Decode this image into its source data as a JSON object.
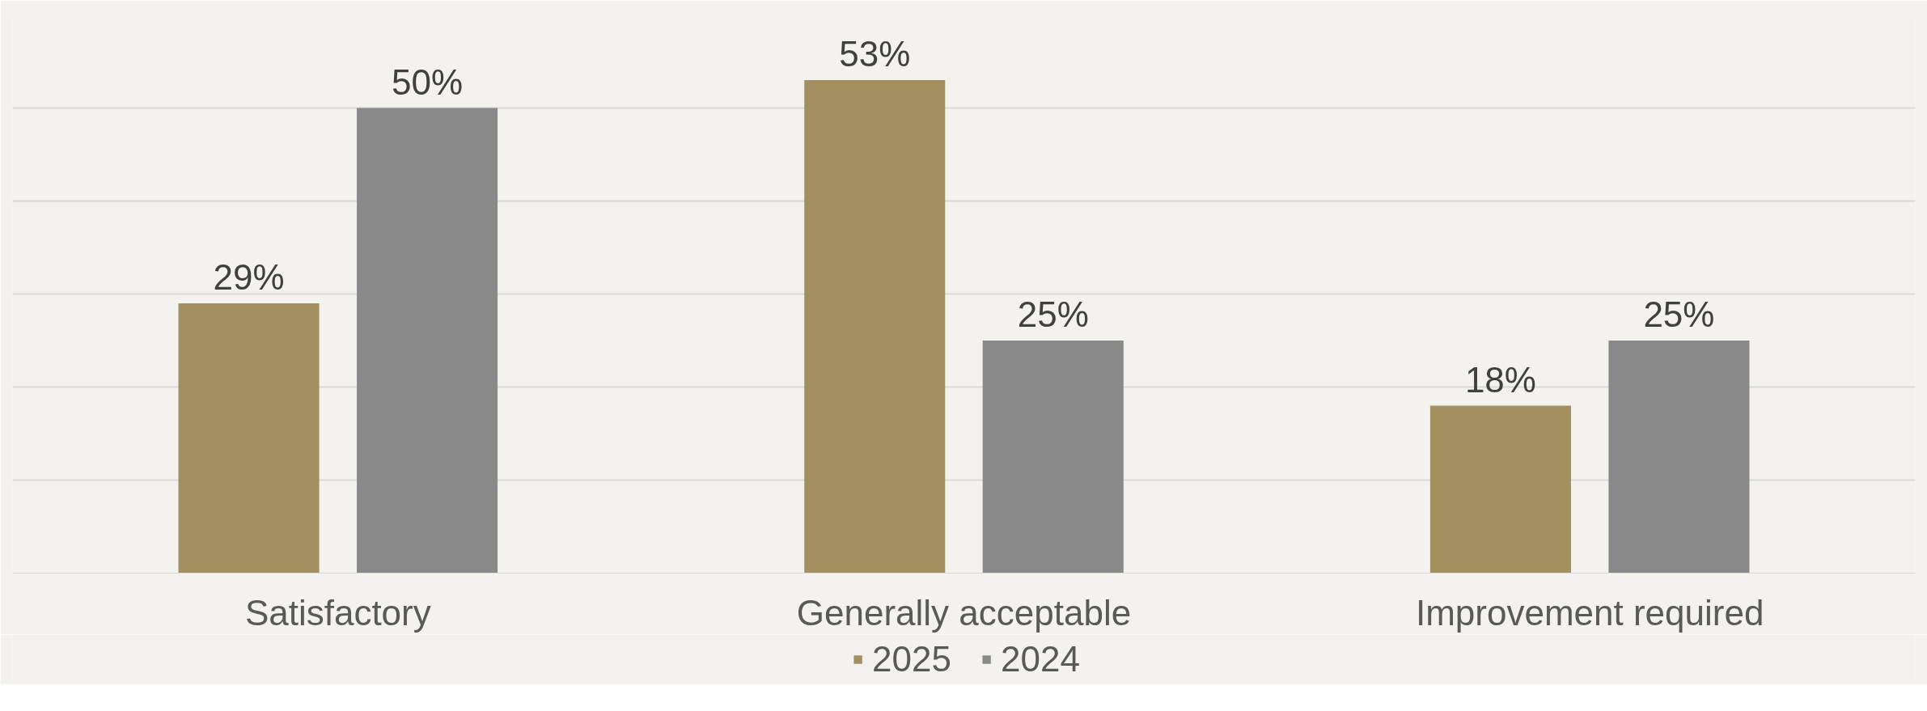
{
  "chart_data": {
    "type": "bar",
    "categories": [
      "Satisfactory",
      "Generally acceptable",
      "Improvement required"
    ],
    "series": [
      {
        "name": "2025",
        "color": "#a39060",
        "values": [
          29,
          53,
          18
        ],
        "value_labels": [
          "29%",
          "53%",
          "18%"
        ]
      },
      {
        "name": "2024",
        "color": "#898989",
        "values": [
          50,
          25,
          25
        ],
        "value_labels": [
          "50%",
          "25%",
          "25%"
        ]
      }
    ],
    "ylim": [
      0,
      60
    ],
    "yticks": [
      {
        "value": 0,
        "label": null
      },
      {
        "value": 10,
        "label": null
      },
      {
        "value": 20,
        "label": null
      },
      {
        "value": 30,
        "label": null
      },
      {
        "value": 40,
        "label": null
      },
      {
        "value": 50,
        "label": null
      },
      {
        "value": 60,
        "label": null
      }
    ],
    "tick_labels": "x",
    "grid": "y",
    "legend": "bottom"
  }
}
